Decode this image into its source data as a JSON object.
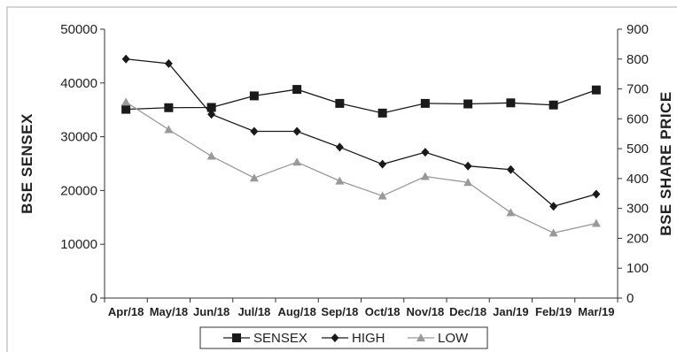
{
  "chart_data": {
    "type": "line",
    "categories": [
      "Apr/18",
      "May/18",
      "Jun/18",
      "Jul/18",
      "Aug/18",
      "Sep/18",
      "Oct/18",
      "Nov/18",
      "Dec/18",
      "Jan/19",
      "Feb/19",
      "Mar/19"
    ],
    "ylabel_left": "BSE SENSEX",
    "ylabel_right": "BSE SHARE PRICE",
    "ylim_left": [
      0,
      50000
    ],
    "ylim_right": [
      0,
      900
    ],
    "yticks_left": [
      "0",
      "10000",
      "20000",
      "30000",
      "40000",
      "50000"
    ],
    "yticks_right": [
      "0",
      "100",
      "200",
      "300",
      "400",
      "500",
      "600",
      "700",
      "800",
      "900"
    ],
    "legend_position": "bottom-center",
    "series": [
      {
        "name": "SENSEX",
        "axis": "left",
        "color": "#1a1a1a",
        "marker": "square",
        "values": [
          35100,
          35400,
          35450,
          37600,
          38800,
          36200,
          34400,
          36200,
          36100,
          36300,
          35900,
          38700
        ]
      },
      {
        "name": "HIGH",
        "axis": "right",
        "color": "#1a1a1a",
        "marker": "diamond",
        "values": [
          800,
          785,
          615,
          558,
          558,
          505,
          448,
          488,
          442,
          430,
          307,
          348
        ]
      },
      {
        "name": "LOW",
        "axis": "right",
        "color": "#999999",
        "marker": "triangle",
        "values": [
          656,
          564,
          475,
          402,
          455,
          392,
          342,
          407,
          387,
          286,
          218,
          250
        ]
      }
    ]
  }
}
